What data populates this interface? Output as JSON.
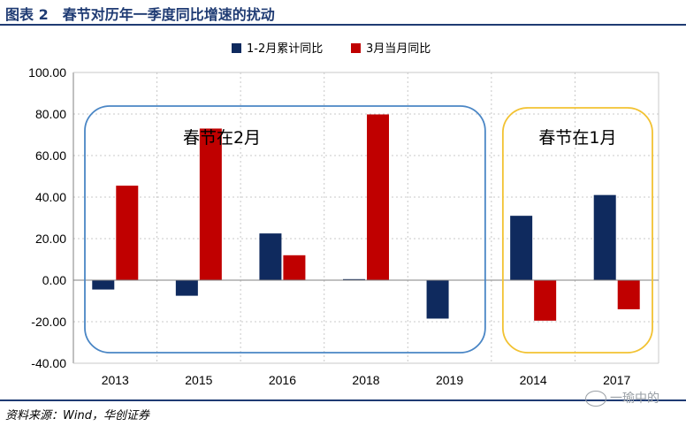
{
  "figure": {
    "title": "图表 2　春节对历年一季度同比增速的扰动",
    "source": "资料来源：Wind，华创证券",
    "watermark": "一瑜中的"
  },
  "colors": {
    "series1": "#0f2a5e",
    "series2": "#c00000",
    "blue_box": "#4a86c5",
    "gold_box": "#f2c232",
    "axis": "#808080",
    "grid": "#c8c8c8",
    "title": "#1f3b73"
  },
  "chart_data": {
    "type": "bar",
    "categories": [
      "2013",
      "2015",
      "2016",
      "2018",
      "2019",
      "2014",
      "2017"
    ],
    "series": [
      {
        "name": "1-2月累计同比",
        "values": [
          -4.5,
          -7.5,
          22.5,
          0.5,
          -18.5,
          31.0,
          41.0
        ]
      },
      {
        "name": "3月当月同比",
        "values": [
          45.5,
          73.0,
          12.0,
          79.8,
          0,
          -19.5,
          -14.0
        ]
      }
    ],
    "ylim": [
      -40,
      100
    ],
    "yticks": [
      "100.00",
      "80.00",
      "60.00",
      "40.00",
      "20.00",
      "0.00",
      "-20.00",
      "-40.00"
    ],
    "grid": true,
    "legend": "top",
    "annotations": [
      {
        "text": "春节在2月",
        "categories": [
          "2013",
          "2015",
          "2016",
          "2018",
          "2019"
        ]
      },
      {
        "text": "春节在1月",
        "categories": [
          "2014",
          "2017"
        ]
      }
    ]
  }
}
